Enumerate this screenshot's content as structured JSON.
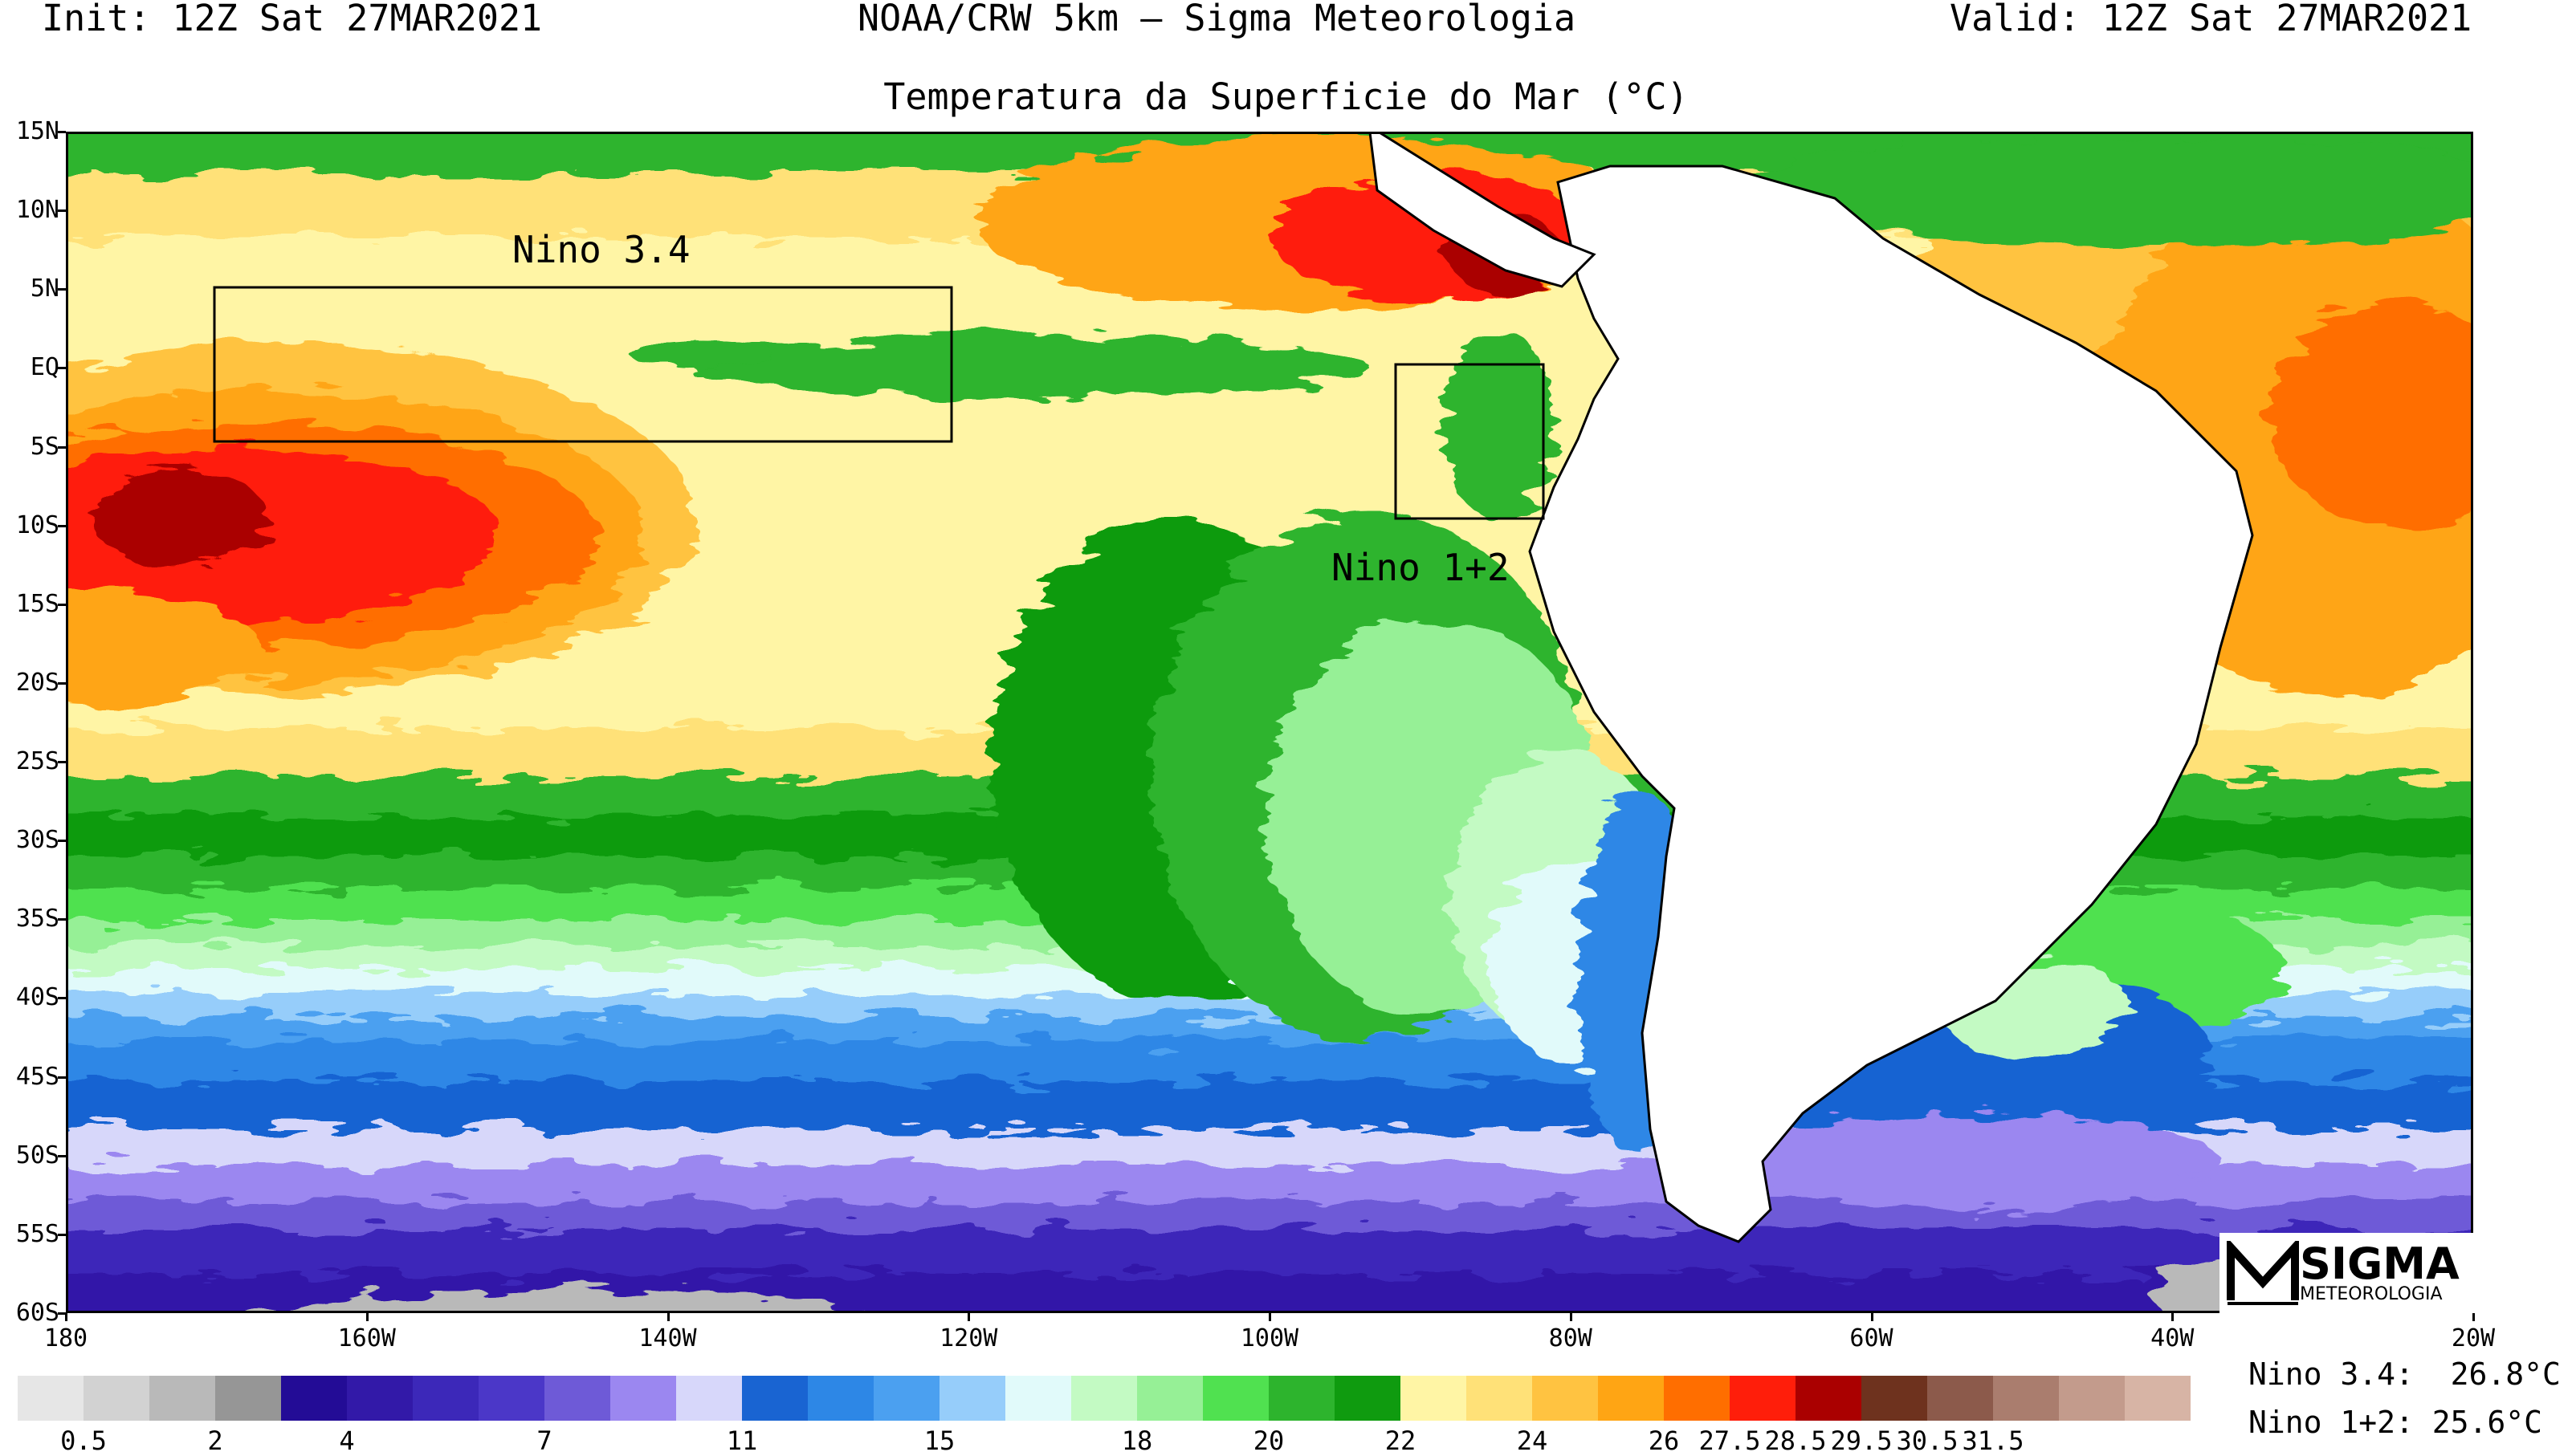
{
  "header": {
    "init": "Init: 12Z Sat 27MAR2021",
    "center": "NOAA/CRW 5km — Sigma Meteorologia",
    "valid": "Valid: 12Z Sat 27MAR2021"
  },
  "title": "Temperatura da Superficie do Mar (°C)",
  "axes": {
    "lat_labels": [
      "15N",
      "10N",
      "5N",
      "EQ",
      "5S",
      "10S",
      "15S",
      "20S",
      "25S",
      "30S",
      "35S",
      "40S",
      "45S",
      "50S",
      "55S",
      "60S"
    ],
    "lon_labels": [
      "180",
      "160W",
      "140W",
      "120W",
      "100W",
      "80W",
      "60W",
      "40W",
      "20W"
    ]
  },
  "regions": {
    "nino34": "Nino 3.4",
    "nino12": "Nino 1+2"
  },
  "stats": {
    "nino34_label": "Nino 3.4:",
    "nino34_value": "26.8°C",
    "nino12_label": "Nino 1+2:",
    "nino12_value": "25.6°C"
  },
  "colorbar": {
    "colors": [
      "#e6e6e6",
      "#d2d2d2",
      "#b9b9b9",
      "#969696",
      "#230c96",
      "#3219a8",
      "#3c28b9",
      "#4b37c8",
      "#6e5ad7",
      "#9b87f0",
      "#d7d7fa",
      "#1964d2",
      "#2d87e6",
      "#4ba0f0",
      "#96cdfa",
      "#e1fafa",
      "#c3fac3",
      "#96f096",
      "#50e150",
      "#2db42d",
      "#0f9b0f",
      "#fff5a5",
      "#ffe178",
      "#ffc341",
      "#ffa514",
      "#ff6e00",
      "#ff1e0a",
      "#aa0000",
      "#6e321e",
      "#8c5a4b",
      "#aa7d6e",
      "#c39b8c",
      "#d7b4a5"
    ],
    "labels": [
      "0.5",
      "2",
      "4",
      "7",
      "11",
      "15",
      "18",
      "20",
      "22",
      "24",
      "26",
      "27.5",
      "28.5",
      "29.5",
      "30.5",
      "31.5"
    ]
  },
  "logo": {
    "name": "SIGMA",
    "sub": "METEOROLOGIA"
  }
}
